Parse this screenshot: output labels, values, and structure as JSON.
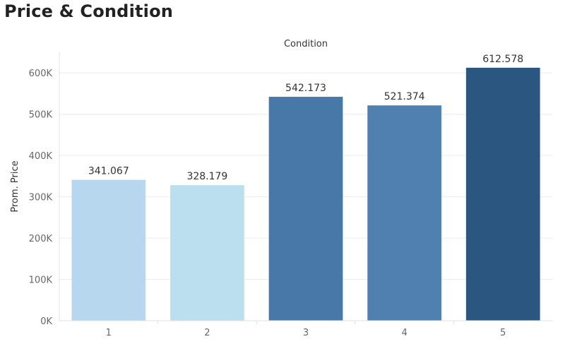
{
  "page": {
    "title": "Price & Condition"
  },
  "chart_data": {
    "type": "bar",
    "title": "Price & Condition",
    "xlabel": "Condition",
    "ylabel": "Prom. Price",
    "categories": [
      "1",
      "2",
      "3",
      "4",
      "5"
    ],
    "values": [
      341067,
      328179,
      542173,
      521374,
      612578
    ],
    "value_labels": [
      "341.067",
      "328.179",
      "542.173",
      "521.374",
      "612.578"
    ],
    "bar_colors": [
      "#b6d7ee",
      "#bcdff0",
      "#4878a8",
      "#5080b0",
      "#2b5680"
    ],
    "ylim": [
      0,
      650000
    ],
    "yticks": [
      0,
      100000,
      200000,
      300000,
      400000,
      500000,
      600000
    ],
    "ytick_labels": [
      "0K",
      "100K",
      "200K",
      "300K",
      "400K",
      "500K",
      "600K"
    ],
    "grid": true,
    "legend": "none"
  }
}
